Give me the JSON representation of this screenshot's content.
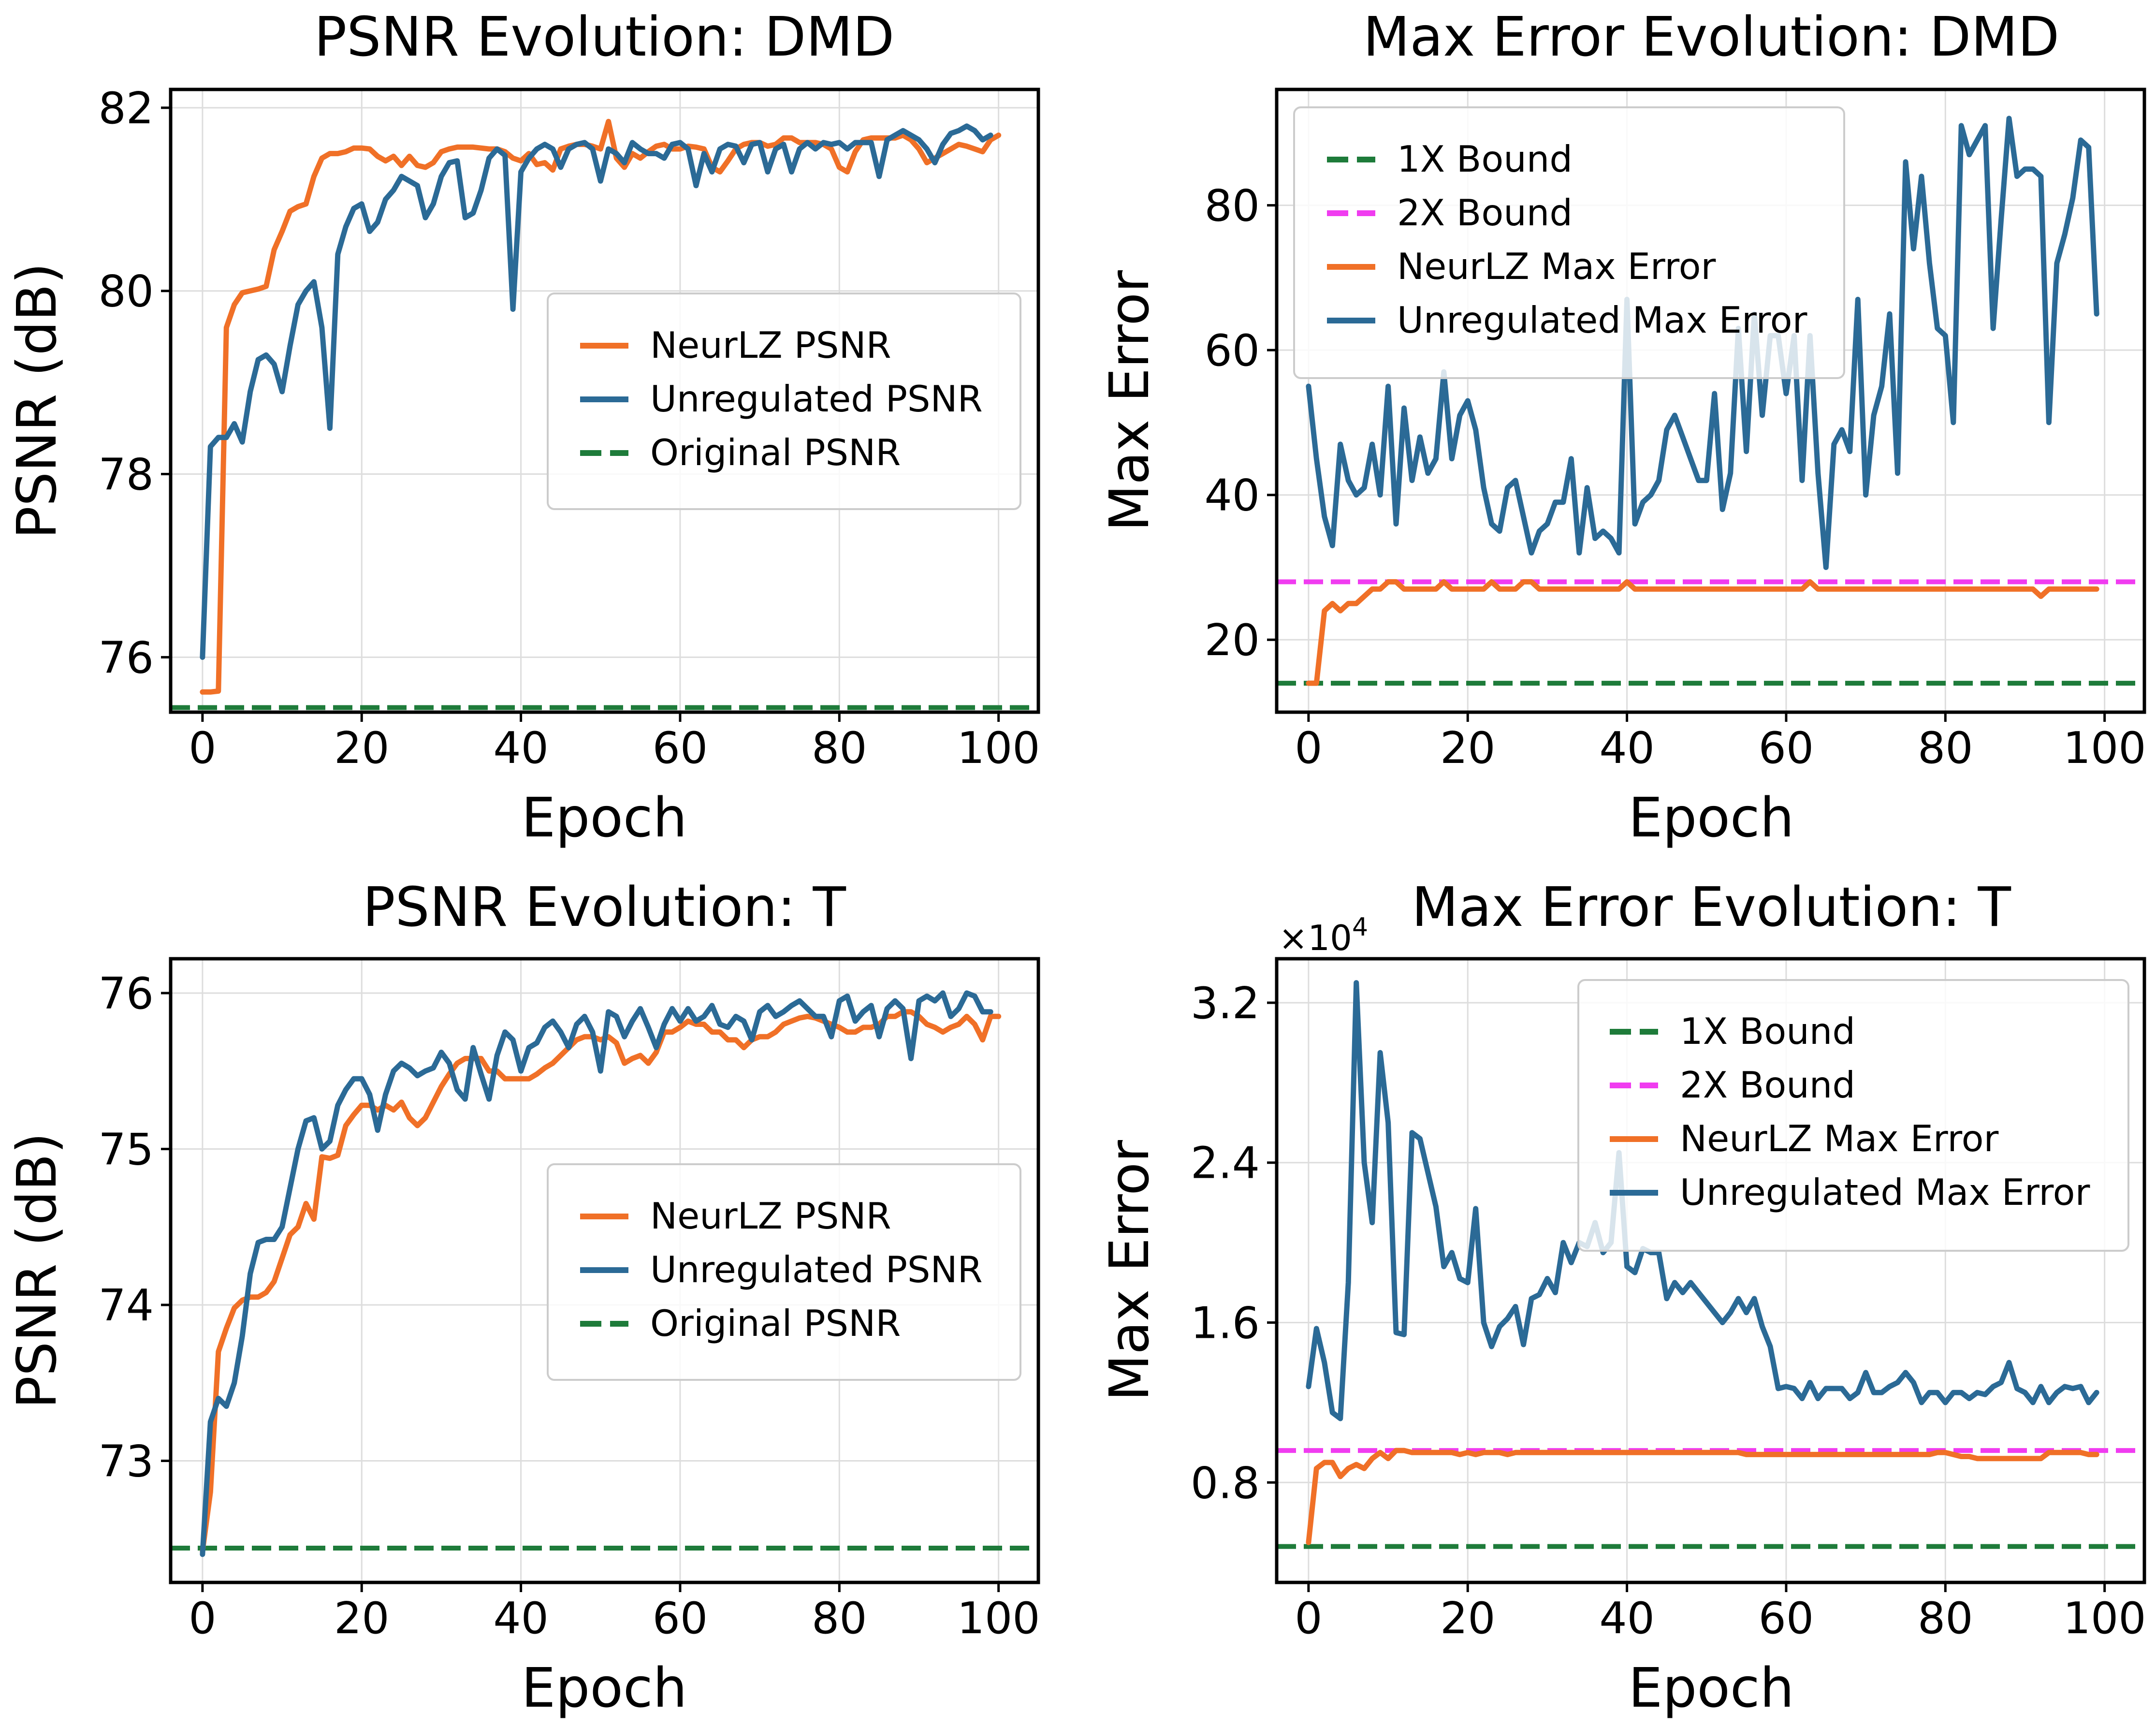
{
  "colors": {
    "neurlz": "#F07027",
    "unregulated": "#2B6A96",
    "bound1x": "#1E7B3A",
    "bound2x": "#F03CF0",
    "grid": "#DDDDDD"
  },
  "chart_data": [
    {
      "type": "line",
      "title": "PSNR Evolution: DMD",
      "xlabel": "Epoch",
      "ylabel": "PSNR (dB)",
      "xlim": [
        -4,
        105
      ],
      "ylim": [
        75.4,
        82.2
      ],
      "xticks": [
        0,
        20,
        40,
        60,
        80,
        100
      ],
      "xtick_labels": [
        "0",
        "20",
        "40",
        "60",
        "80",
        "100"
      ],
      "yticks": [
        76,
        78,
        80,
        82
      ],
      "ytick_labels": [
        "76",
        "78",
        "80",
        "82"
      ],
      "grid": true,
      "legend": "center-right",
      "series": [
        {
          "name": "NeurLZ PSNR",
          "color": "neurlz",
          "style": "solid",
          "values": [
            75.62,
            75.62,
            75.63,
            79.6,
            79.85,
            79.98,
            80.0,
            80.02,
            80.05,
            80.45,
            80.65,
            80.87,
            80.92,
            80.95,
            81.25,
            81.45,
            81.5,
            81.5,
            81.52,
            81.56,
            81.56,
            81.55,
            81.47,
            81.42,
            81.47,
            81.37,
            81.47,
            81.37,
            81.35,
            81.4,
            81.52,
            81.55,
            81.57,
            81.57,
            81.57,
            81.56,
            81.55,
            81.55,
            81.52,
            81.45,
            81.42,
            81.5,
            81.38,
            81.4,
            81.32,
            81.55,
            81.58,
            81.6,
            81.6,
            81.58,
            81.55,
            81.85,
            81.45,
            81.35,
            81.5,
            81.45,
            81.52,
            81.58,
            81.6,
            81.55,
            81.55,
            81.58,
            81.57,
            81.55,
            81.35,
            81.3,
            81.42,
            81.55,
            81.6,
            81.62,
            81.62,
            81.58,
            81.6,
            81.67,
            81.67,
            81.62,
            81.62,
            81.62,
            81.6,
            81.55,
            81.35,
            81.3,
            81.52,
            81.65,
            81.67,
            81.67,
            81.67,
            81.67,
            81.7,
            81.65,
            81.55,
            81.4,
            81.45,
            81.5,
            81.55,
            81.6,
            81.58,
            81.55,
            81.52,
            81.65,
            81.7
          ]
        },
        {
          "name": "Unregulated PSNR",
          "color": "unregulated",
          "style": "solid",
          "values": [
            76.0,
            78.3,
            78.4,
            78.4,
            78.55,
            78.35,
            78.9,
            79.25,
            79.3,
            79.2,
            78.9,
            79.4,
            79.85,
            80.0,
            80.1,
            79.6,
            78.5,
            80.4,
            80.7,
            80.9,
            80.95,
            80.65,
            80.75,
            81.0,
            81.1,
            81.25,
            81.2,
            81.15,
            80.8,
            80.95,
            81.25,
            81.4,
            81.42,
            80.8,
            80.85,
            81.1,
            81.45,
            81.55,
            81.48,
            79.8,
            81.3,
            81.45,
            81.55,
            81.6,
            81.55,
            81.35,
            81.55,
            81.6,
            81.62,
            81.55,
            81.2,
            81.55,
            81.5,
            81.4,
            81.62,
            81.55,
            81.5,
            81.5,
            81.45,
            81.6,
            81.62,
            81.55,
            81.15,
            81.5,
            81.3,
            81.55,
            81.6,
            81.58,
            81.4,
            81.6,
            81.62,
            81.3,
            81.55,
            81.6,
            81.3,
            81.55,
            81.62,
            81.55,
            81.62,
            81.6,
            81.62,
            81.55,
            81.62,
            81.62,
            81.62,
            81.25,
            81.65,
            81.7,
            81.75,
            81.7,
            81.65,
            81.55,
            81.4,
            81.6,
            81.72,
            81.75,
            81.8,
            81.75,
            81.65,
            81.7
          ]
        },
        {
          "name": "Original PSNR",
          "color": "bound1x",
          "style": "dashed",
          "constant": 75.45
        }
      ]
    },
    {
      "type": "line",
      "title": "Max Error Evolution: DMD",
      "xlabel": "Epoch",
      "ylabel": "Max Error",
      "xlim": [
        -4,
        105
      ],
      "ylim": [
        10,
        96
      ],
      "xticks": [
        0,
        20,
        40,
        60,
        80,
        100
      ],
      "xtick_labels": [
        "0",
        "20",
        "40",
        "60",
        "80",
        "100"
      ],
      "yticks": [
        20,
        40,
        60,
        80
      ],
      "ytick_labels": [
        "20",
        "40",
        "60",
        "80"
      ],
      "grid": true,
      "legend": "top-left",
      "series": [
        {
          "name": "1X Bound",
          "color": "bound1x",
          "style": "dashed",
          "constant": 14
        },
        {
          "name": "2X Bound",
          "color": "bound2x",
          "style": "dashed",
          "constant": 28
        },
        {
          "name": "NeurLZ Max Error",
          "color": "neurlz",
          "style": "solid",
          "values": [
            14,
            14,
            24,
            25,
            24,
            25,
            25,
            26,
            27,
            27,
            28,
            28,
            27,
            27,
            27,
            27,
            27,
            28,
            27,
            27,
            27,
            27,
            27,
            28,
            27,
            27,
            27,
            28,
            28,
            27,
            27,
            27,
            27,
            27,
            27,
            27,
            27,
            27,
            27,
            27,
            28,
            27,
            27,
            27,
            27,
            27,
            27,
            27,
            27,
            27,
            27,
            27,
            27,
            27,
            27,
            27,
            27,
            27,
            27,
            27,
            27,
            27,
            27,
            28,
            27,
            27,
            27,
            27,
            27,
            27,
            27,
            27,
            27,
            27,
            27,
            27,
            27,
            27,
            27,
            27,
            27,
            27,
            27,
            27,
            27,
            27,
            27,
            27,
            27,
            27,
            27,
            27,
            26,
            27,
            27,
            27,
            27,
            27,
            27,
            27
          ]
        },
        {
          "name": "Unregulated Max Error",
          "color": "unregulated",
          "style": "solid",
          "values": [
            55,
            45,
            37,
            33,
            47,
            42,
            40,
            41,
            47,
            40,
            55,
            36,
            52,
            42,
            48,
            43,
            45,
            57,
            45,
            51,
            53,
            49,
            41,
            36,
            35,
            41,
            42,
            37,
            32,
            35,
            36,
            39,
            39,
            45,
            32,
            41,
            34,
            35,
            34,
            32,
            67,
            36,
            39,
            40,
            42,
            49,
            51,
            48,
            45,
            42,
            42,
            54,
            38,
            43,
            63,
            46,
            65,
            51,
            62,
            62,
            54,
            62,
            42,
            62,
            43,
            30,
            47,
            49,
            46,
            67,
            40,
            51,
            55,
            65,
            43,
            86,
            74,
            84,
            72,
            63,
            62,
            50,
            91,
            87,
            89,
            91,
            63,
            78,
            92,
            84,
            85,
            85,
            84,
            50,
            72,
            76,
            81,
            89,
            88,
            65
          ]
        }
      ]
    },
    {
      "type": "line",
      "title": "PSNR Evolution: T",
      "xlabel": "Epoch",
      "ylabel": "PSNR (dB)",
      "xlim": [
        -4,
        105
      ],
      "ylim": [
        72.22,
        76.22
      ],
      "xticks": [
        0,
        20,
        40,
        60,
        80,
        100
      ],
      "xtick_labels": [
        "0",
        "20",
        "40",
        "60",
        "80",
        "100"
      ],
      "yticks": [
        73,
        74,
        75,
        76
      ],
      "ytick_labels": [
        "73",
        "74",
        "75",
        "76"
      ],
      "grid": true,
      "legend": "center-right",
      "series": [
        {
          "name": "NeurLZ PSNR",
          "color": "neurlz",
          "style": "solid",
          "values": [
            72.42,
            72.8,
            73.7,
            73.85,
            73.98,
            74.03,
            74.05,
            74.05,
            74.08,
            74.15,
            74.3,
            74.45,
            74.5,
            74.65,
            74.55,
            74.95,
            74.94,
            74.96,
            75.15,
            75.22,
            75.28,
            75.28,
            75.25,
            75.28,
            75.25,
            75.3,
            75.2,
            75.15,
            75.2,
            75.3,
            75.4,
            75.48,
            75.55,
            75.58,
            75.58,
            75.58,
            75.5,
            75.5,
            75.45,
            75.45,
            75.45,
            75.45,
            75.48,
            75.52,
            75.55,
            75.6,
            75.65,
            75.7,
            75.72,
            75.72,
            75.7,
            75.72,
            75.68,
            75.55,
            75.58,
            75.6,
            75.55,
            75.62,
            75.75,
            75.75,
            75.78,
            75.82,
            75.8,
            75.8,
            75.75,
            75.75,
            75.7,
            75.7,
            75.65,
            75.7,
            75.72,
            75.72,
            75.75,
            75.8,
            75.82,
            75.84,
            75.85,
            75.84,
            75.82,
            75.8,
            75.78,
            75.75,
            75.75,
            75.78,
            75.78,
            75.8,
            75.85,
            75.85,
            75.88,
            75.88,
            75.85,
            75.8,
            75.78,
            75.75,
            75.78,
            75.8,
            75.85,
            75.8,
            75.7,
            75.85,
            75.85
          ]
        },
        {
          "name": "Unregulated PSNR",
          "color": "unregulated",
          "style": "solid",
          "values": [
            72.4,
            73.25,
            73.4,
            73.35,
            73.5,
            73.8,
            74.2,
            74.4,
            74.42,
            74.42,
            74.5,
            74.75,
            75.0,
            75.18,
            75.2,
            75.0,
            75.05,
            75.28,
            75.38,
            75.45,
            75.45,
            75.35,
            75.12,
            75.35,
            75.5,
            75.55,
            75.52,
            75.47,
            75.5,
            75.52,
            75.62,
            75.55,
            75.38,
            75.32,
            75.65,
            75.48,
            75.32,
            75.6,
            75.75,
            75.7,
            75.5,
            75.65,
            75.68,
            75.78,
            75.82,
            75.75,
            75.65,
            75.8,
            75.85,
            75.75,
            75.5,
            75.88,
            75.85,
            75.72,
            75.82,
            75.9,
            75.78,
            75.65,
            75.8,
            75.9,
            75.82,
            75.9,
            75.82,
            75.85,
            75.92,
            75.8,
            75.78,
            75.85,
            75.82,
            75.7,
            75.88,
            75.92,
            75.85,
            75.88,
            75.92,
            75.95,
            75.9,
            75.85,
            75.85,
            75.72,
            75.95,
            75.98,
            75.82,
            75.88,
            75.92,
            75.72,
            75.9,
            75.95,
            75.9,
            75.58,
            75.95,
            75.98,
            75.95,
            76.0,
            75.85,
            75.9,
            76.0,
            75.98,
            75.88,
            75.88
          ]
        },
        {
          "name": "Original PSNR",
          "color": "bound1x",
          "style": "dashed",
          "constant": 72.44
        }
      ]
    },
    {
      "type": "line",
      "title": "Max Error Evolution: T",
      "xlabel": "Epoch",
      "ylabel": "Max Error",
      "y_multiplier": "×10",
      "y_multiplier_exp": "4",
      "xlim": [
        -4,
        105
      ],
      "ylim": [
        0.3,
        3.42
      ],
      "xticks": [
        0,
        20,
        40,
        60,
        80,
        100
      ],
      "xtick_labels": [
        "0",
        "20",
        "40",
        "60",
        "80",
        "100"
      ],
      "yticks": [
        0.8,
        1.6,
        2.4,
        3.2
      ],
      "ytick_labels": [
        "0.8",
        "1.6",
        "2.4",
        "3.2"
      ],
      "grid": true,
      "legend": "top-right",
      "series": [
        {
          "name": "1X Bound",
          "color": "bound1x",
          "style": "dashed",
          "constant": 0.48
        },
        {
          "name": "2X Bound",
          "color": "bound2x",
          "style": "dashed",
          "constant": 0.96
        },
        {
          "name": "NeurLZ Max Error",
          "color": "neurlz",
          "style": "solid",
          "values": [
            0.5,
            0.87,
            0.9,
            0.9,
            0.83,
            0.87,
            0.89,
            0.87,
            0.92,
            0.95,
            0.92,
            0.96,
            0.96,
            0.95,
            0.95,
            0.95,
            0.95,
            0.95,
            0.95,
            0.94,
            0.95,
            0.94,
            0.95,
            0.95,
            0.95,
            0.94,
            0.95,
            0.95,
            0.95,
            0.95,
            0.95,
            0.95,
            0.95,
            0.95,
            0.95,
            0.95,
            0.95,
            0.95,
            0.95,
            0.95,
            0.95,
            0.95,
            0.95,
            0.95,
            0.95,
            0.95,
            0.95,
            0.95,
            0.95,
            0.95,
            0.95,
            0.95,
            0.95,
            0.95,
            0.95,
            0.94,
            0.94,
            0.94,
            0.94,
            0.94,
            0.94,
            0.94,
            0.94,
            0.94,
            0.94,
            0.94,
            0.94,
            0.94,
            0.94,
            0.94,
            0.94,
            0.94,
            0.94,
            0.94,
            0.94,
            0.94,
            0.94,
            0.94,
            0.94,
            0.95,
            0.95,
            0.94,
            0.93,
            0.93,
            0.92,
            0.92,
            0.92,
            0.92,
            0.92,
            0.92,
            0.92,
            0.92,
            0.92,
            0.95,
            0.95,
            0.95,
            0.95,
            0.95,
            0.94,
            0.94
          ]
        },
        {
          "name": "Unregulated Max Error",
          "color": "unregulated",
          "style": "solid",
          "values": [
            1.28,
            1.57,
            1.4,
            1.15,
            1.12,
            1.8,
            3.3,
            2.4,
            2.1,
            2.95,
            2.6,
            1.55,
            1.54,
            2.55,
            2.52,
            2.35,
            2.18,
            1.88,
            1.95,
            1.82,
            1.8,
            2.17,
            1.6,
            1.48,
            1.58,
            1.62,
            1.68,
            1.49,
            1.72,
            1.74,
            1.82,
            1.75,
            2.0,
            1.9,
            2.0,
            1.98,
            2.1,
            1.95,
            2.0,
            2.45,
            1.88,
            1.85,
            1.97,
            1.95,
            1.95,
            1.72,
            1.8,
            1.75,
            1.8,
            1.75,
            1.7,
            1.65,
            1.6,
            1.65,
            1.72,
            1.65,
            1.72,
            1.58,
            1.48,
            1.27,
            1.28,
            1.27,
            1.22,
            1.3,
            1.22,
            1.27,
            1.27,
            1.27,
            1.22,
            1.25,
            1.35,
            1.25,
            1.25,
            1.28,
            1.3,
            1.35,
            1.3,
            1.2,
            1.25,
            1.25,
            1.2,
            1.25,
            1.25,
            1.22,
            1.25,
            1.24,
            1.28,
            1.3,
            1.4,
            1.27,
            1.25,
            1.2,
            1.28,
            1.2,
            1.25,
            1.28,
            1.27,
            1.28,
            1.2,
            1.25
          ]
        }
      ]
    }
  ]
}
